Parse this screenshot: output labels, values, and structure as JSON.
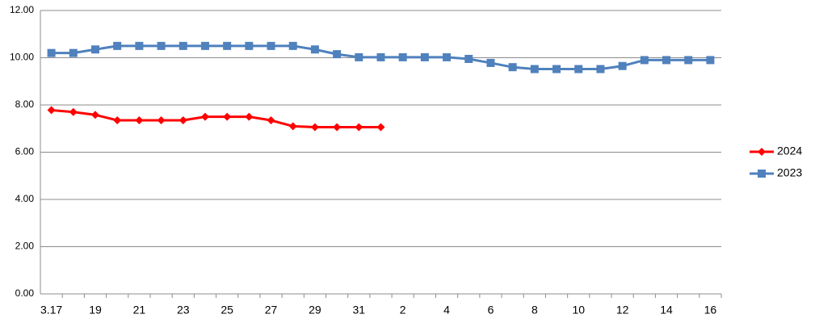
{
  "chart_data": {
    "type": "line",
    "categories": [
      "3.17",
      null,
      "19",
      null,
      "21",
      null,
      "23",
      null,
      "25",
      null,
      "27",
      null,
      "29",
      null,
      "31",
      null,
      "2",
      null,
      "4",
      null,
      "6",
      null,
      "8",
      null,
      "10",
      null,
      "12",
      null,
      "14",
      null,
      "16"
    ],
    "series": [
      {
        "name": "2024",
        "color": "#ff0000",
        "marker": "diamond",
        "values": [
          7.78,
          7.7,
          7.58,
          7.35,
          7.35,
          7.35,
          7.35,
          7.5,
          7.5,
          7.5,
          7.35,
          7.1,
          7.06,
          7.06,
          7.06,
          7.06,
          null,
          null,
          null,
          null,
          null,
          null,
          null,
          null,
          null,
          null,
          null,
          null,
          null,
          null,
          null
        ]
      },
      {
        "name": "2023",
        "color": "#4f81bd",
        "marker": "square",
        "values": [
          10.2,
          10.2,
          10.35,
          10.5,
          10.5,
          10.5,
          10.5,
          10.5,
          10.5,
          10.5,
          10.5,
          10.5,
          10.35,
          10.15,
          10.02,
          10.02,
          10.02,
          10.02,
          10.02,
          9.95,
          9.78,
          9.6,
          9.52,
          9.52,
          9.52,
          9.52,
          9.65,
          9.9,
          9.9,
          9.9,
          9.9
        ]
      }
    ],
    "ylim": [
      0,
      12
    ],
    "yticks": [
      {
        "value": 0,
        "label": "0.00"
      },
      {
        "value": 2,
        "label": "2.00"
      },
      {
        "value": 4,
        "label": "4.00"
      },
      {
        "value": 6,
        "label": "6.00"
      },
      {
        "value": 8,
        "label": "8.00"
      },
      {
        "value": 10,
        "label": "10.00"
      },
      {
        "value": 12,
        "label": "12.00"
      }
    ],
    "grid": true,
    "legend": "right"
  }
}
